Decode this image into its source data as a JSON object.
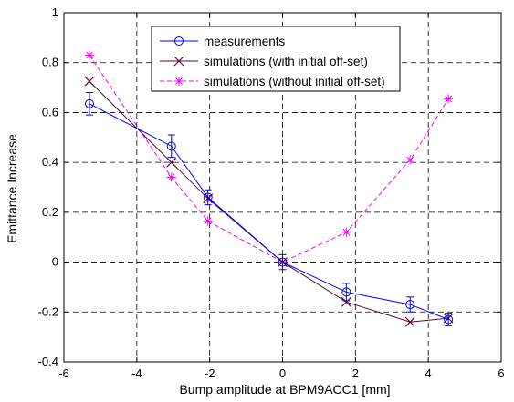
{
  "chart_data": {
    "type": "line",
    "title": "",
    "xlabel": "Bump amplitude at BPM9ACC1 [mm]",
    "ylabel": "Emittance Increase",
    "xlim": [
      -6,
      6
    ],
    "ylim": [
      -0.4,
      1
    ],
    "xticks": [
      -6,
      -4,
      -2,
      0,
      2,
      4,
      6
    ],
    "yticks": [
      -0.4,
      -0.2,
      0,
      0.2,
      0.4,
      0.6,
      0.8,
      1
    ],
    "xtick_labels": [
      "-6",
      "-4",
      "-2",
      "0",
      "2",
      "4",
      "6"
    ],
    "ytick_labels": [
      "-0.4",
      "-0.2",
      "0",
      "0.2",
      "0.4",
      "0.6",
      "0.8",
      "1"
    ],
    "grid": true,
    "grid_style": "dashed",
    "legend_position": "top-right",
    "series": [
      {
        "name": "measurements",
        "color": "#0000ff",
        "line_style": "solid",
        "marker": "circle",
        "x": [
          -5.3,
          -3.05,
          -2.05,
          0,
          1.75,
          3.5,
          4.55
        ],
        "y": [
          0.635,
          0.465,
          0.26,
          0.0,
          -0.12,
          -0.17,
          -0.23
        ],
        "err": [
          0.045,
          0.045,
          0.03,
          0.03,
          0.035,
          0.03,
          0.025
        ]
      },
      {
        "name": "simulations (with initial off-set)",
        "color": "#5a0a3a",
        "line_style": "solid",
        "marker": "x",
        "x": [
          -5.3,
          -3.05,
          -2.05,
          0,
          1.75,
          3.5,
          4.55
        ],
        "y": [
          0.725,
          0.4,
          0.255,
          0.0,
          -0.16,
          -0.24,
          -0.225
        ]
      },
      {
        "name": "simulations (without initial off-set)",
        "color": "#ff00ff",
        "line_style": "dashed",
        "marker": "asterisk",
        "x": [
          -5.3,
          -3.05,
          -2.05,
          0,
          1.75,
          3.5,
          4.55
        ],
        "y": [
          0.83,
          0.34,
          0.165,
          0.0,
          0.12,
          0.41,
          0.655
        ]
      }
    ]
  }
}
